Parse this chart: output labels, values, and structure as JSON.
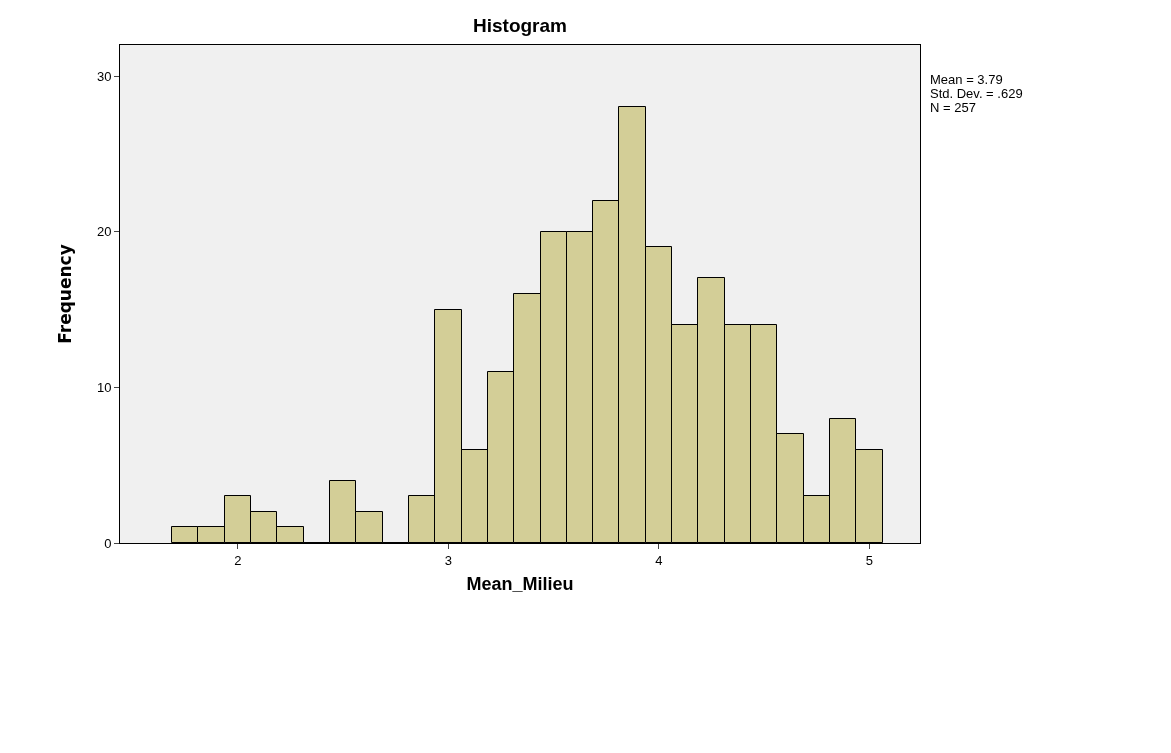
{
  "chart_data": {
    "type": "histogram",
    "title": "Histogram",
    "xlabel": "Mean_Milieu",
    "ylabel": "Frequency",
    "bins": [
      1.6875,
      1.8125,
      1.9375,
      2.0625,
      2.1875,
      2.3125,
      2.4375,
      2.5625,
      2.6875,
      2.8125,
      2.9375,
      3.0625,
      3.1875,
      3.3125,
      3.4375,
      3.5625,
      3.6875,
      3.8125,
      3.9375,
      4.0625,
      4.1875,
      4.3125,
      4.4375,
      4.5625,
      4.6875,
      4.8125,
      4.9375,
      5.0625
    ],
    "values": [
      1,
      1,
      3,
      2,
      1,
      0,
      4,
      2,
      0,
      3,
      15,
      6,
      11,
      16,
      20,
      20,
      22,
      28,
      19,
      14,
      17,
      14,
      14,
      7,
      3,
      8,
      6
    ],
    "color": "#d3ce97",
    "xlim": [
      1.44,
      5.24
    ],
    "xticks": [
      2,
      3,
      4,
      5
    ],
    "ylim": [
      0,
      32
    ],
    "yticks": [
      0,
      10,
      20,
      30
    ],
    "grid": false,
    "legend": false,
    "annotations": [
      "Mean = 3.79",
      "Std. Dev. = .629",
      "N = 257"
    ]
  }
}
